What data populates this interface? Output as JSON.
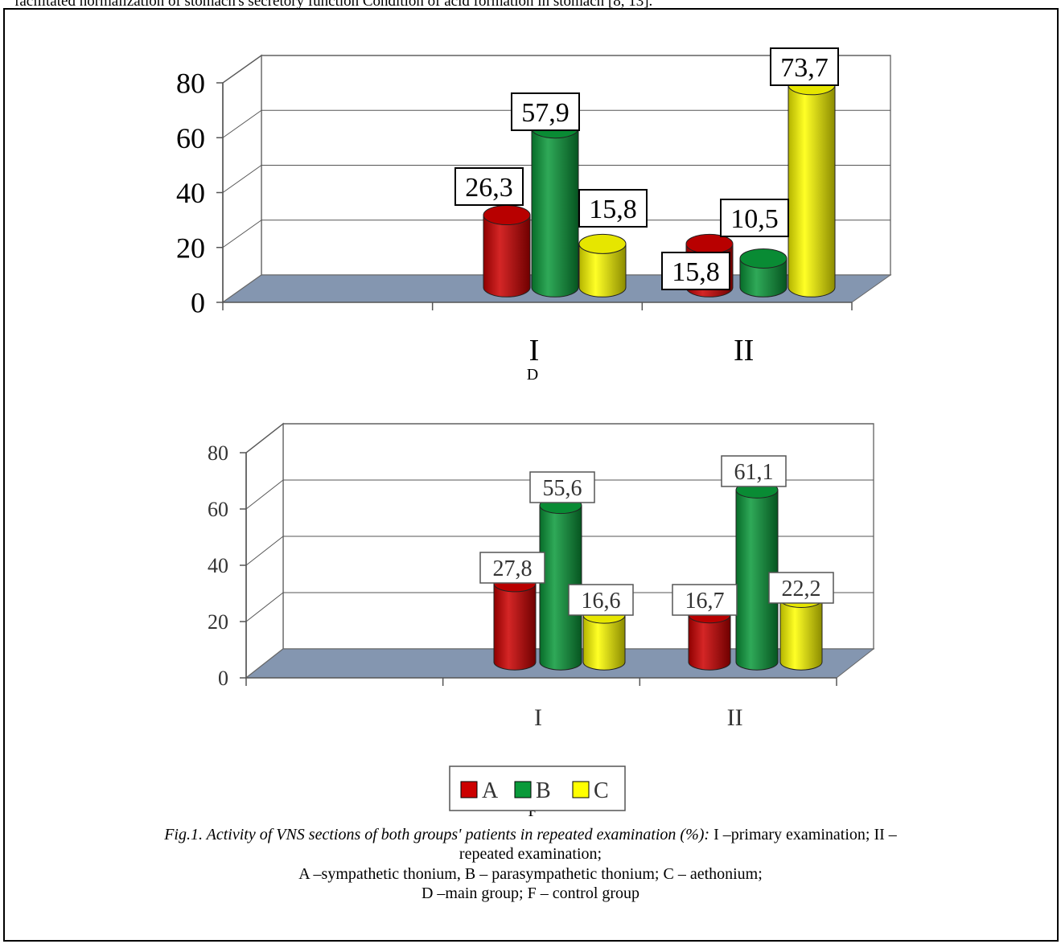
{
  "page": {
    "top_text": "facilitated normalization of stomach's secretory function Condition of acid formation in stomach [8, 13].",
    "caption_italic": "Fig.1. Activity of VNS sections of both groups' patients in repeated examination (%):",
    "caption_line1_rest": " I –primary examination; II –",
    "caption_line2": "repeated examination;",
    "caption_line3": "A –sympathetic thonium, B – parasympathetic thonium; C – aethonium;",
    "caption_line4": "D –main group; F – control group"
  },
  "colors": {
    "A": "#cc0000",
    "B": "#0a9a3a",
    "C": "#ffff00",
    "floor": "#8496b0"
  },
  "chart_data": [
    {
      "type": "bar",
      "title": "D",
      "categories": [
        "I",
        "II"
      ],
      "series": [
        {
          "name": "A",
          "values": [
            26.3,
            15.8
          ],
          "labels": [
            "26,3",
            "15,8"
          ]
        },
        {
          "name": "B",
          "values": [
            57.9,
            10.5
          ],
          "labels": [
            "57,9",
            "10,5"
          ]
        },
        {
          "name": "C",
          "values": [
            15.8,
            73.7
          ],
          "labels": [
            "15,8",
            "73,7"
          ]
        }
      ],
      "yticks": [
        "0",
        "20",
        "40",
        "60",
        "80"
      ],
      "ylim": [
        0,
        80
      ],
      "grid": true,
      "legend": null
    },
    {
      "type": "bar",
      "title": "F",
      "categories": [
        "I",
        "II"
      ],
      "series": [
        {
          "name": "A",
          "values": [
            27.8,
            16.7
          ],
          "labels": [
            "27,8",
            "16,7"
          ]
        },
        {
          "name": "B",
          "values": [
            55.6,
            61.1
          ],
          "labels": [
            "55,6",
            "61,1"
          ]
        },
        {
          "name": "C",
          "values": [
            16.6,
            22.2
          ],
          "labels": [
            "16,6",
            "22,2"
          ]
        }
      ],
      "yticks": [
        "0",
        "20",
        "40",
        "60",
        "80"
      ],
      "ylim": [
        0,
        80
      ],
      "grid": true,
      "legend": "bottom-center"
    }
  ]
}
